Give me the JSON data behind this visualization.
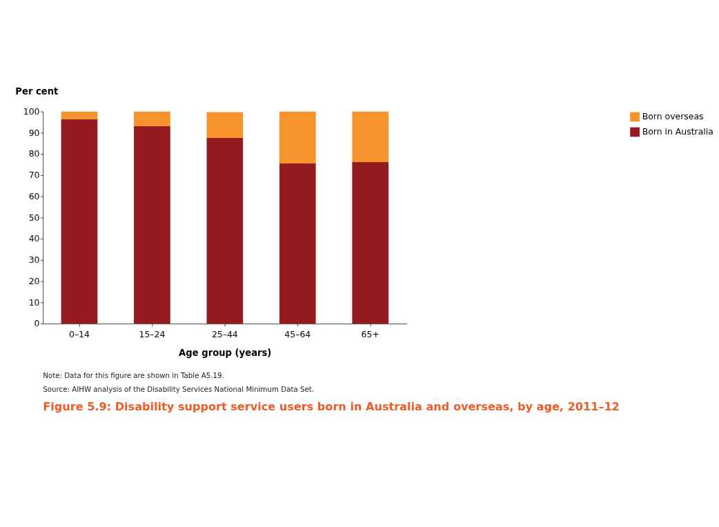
{
  "chart_data": {
    "type": "bar",
    "stacked": true,
    "title": "Figure 5.9: Disability support service users born in Australia and overseas, by age, 2011–12",
    "xlabel": "Age group (years)",
    "ylabel": "Per cent",
    "categories": [
      "0–14",
      "15–24",
      "25–44",
      "45–64",
      "65+"
    ],
    "series": [
      {
        "name": "Born in Australia",
        "color": "#961b1e",
        "values": [
          96.4,
          93.1,
          87.6,
          75.5,
          76.2
        ]
      },
      {
        "name": "Born overseas",
        "color": "#f7932d",
        "values": [
          3.6,
          6.9,
          12.2,
          24.5,
          23.8
        ]
      }
    ],
    "ylim": [
      0,
      100
    ],
    "yticks": [
      0,
      10,
      20,
      30,
      40,
      50,
      60,
      70,
      80,
      90,
      100
    ],
    "grid": false,
    "legend": "right",
    "annotations": [
      "Note: Data for this figure are shown in Table A5.19.",
      "Source: AIHW analysis of the Disability Services National Minimum Data Set."
    ]
  }
}
